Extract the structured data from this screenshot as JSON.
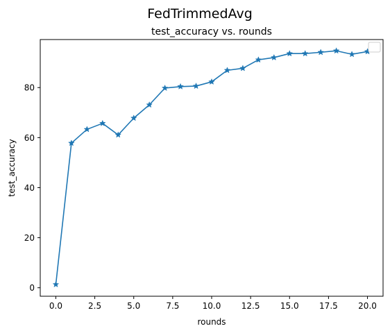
{
  "figure": {
    "suptitle": "FedTrimmedAvg"
  },
  "chart_data": {
    "type": "line",
    "title": "test_accuracy vs. rounds",
    "xlabel": "rounds",
    "ylabel": "test_accuracy",
    "xlim": [
      -1.0,
      21.0
    ],
    "ylim": [
      -3.4,
      99.2
    ],
    "xticks": [
      0.0,
      2.5,
      5.0,
      7.5,
      10.0,
      12.5,
      15.0,
      17.5,
      20.0
    ],
    "xtick_labels": [
      "0.0",
      "2.5",
      "5.0",
      "7.5",
      "10.0",
      "12.5",
      "15.0",
      "17.5",
      "20.0"
    ],
    "yticks": [
      0,
      20,
      40,
      60,
      80
    ],
    "ytick_labels": [
      "0",
      "20",
      "40",
      "60",
      "80"
    ],
    "grid": false,
    "legend": {
      "placement": "top-right",
      "entries": []
    },
    "series": [
      {
        "color": "#1f77b4",
        "marker": "star",
        "x": [
          0,
          1,
          2,
          3,
          4,
          5,
          6,
          7,
          8,
          9,
          10,
          11,
          12,
          13,
          14,
          15,
          16,
          17,
          18,
          19,
          20
        ],
        "y": [
          1.3,
          57.8,
          63.3,
          65.7,
          61.1,
          67.8,
          73.1,
          79.8,
          80.4,
          80.6,
          82.3,
          86.9,
          87.7,
          91.1,
          92.0,
          93.6,
          93.6,
          94.1,
          94.7,
          93.3,
          94.4
        ]
      }
    ]
  }
}
